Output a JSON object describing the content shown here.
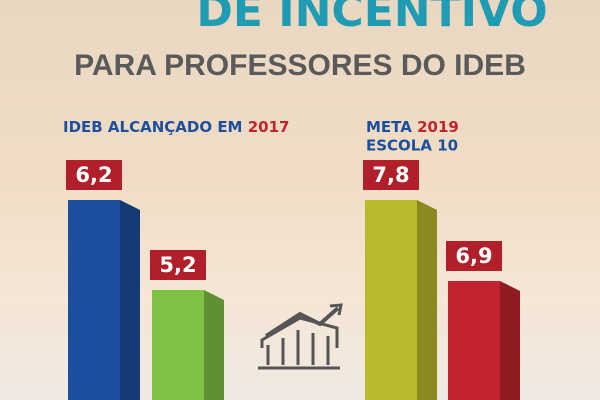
{
  "header": {
    "title": "DE INCENTIVO",
    "subtitle": "PARA PROFESSORES DO IDEB"
  },
  "chart_data": [
    {
      "type": "bar",
      "title": {
        "text": "IDEB ALCANÇADO EM",
        "year": "2017"
      },
      "categories": [
        null,
        null
      ],
      "values": [
        6.2,
        5.2
      ],
      "value_labels": [
        "6,2",
        "5,2"
      ],
      "colors": [
        "#1d4f9f",
        "#7dc243"
      ]
    },
    {
      "type": "bar",
      "title": {
        "text": "META",
        "year": "2019"
      },
      "subtitle": "ESCOLA 10",
      "categories": [
        null,
        null
      ],
      "values": [
        7.8,
        6.9
      ],
      "value_labels": [
        "7,8",
        "6,9"
      ],
      "colors": [
        "#b8b92b",
        "#c1242f"
      ]
    }
  ]
}
